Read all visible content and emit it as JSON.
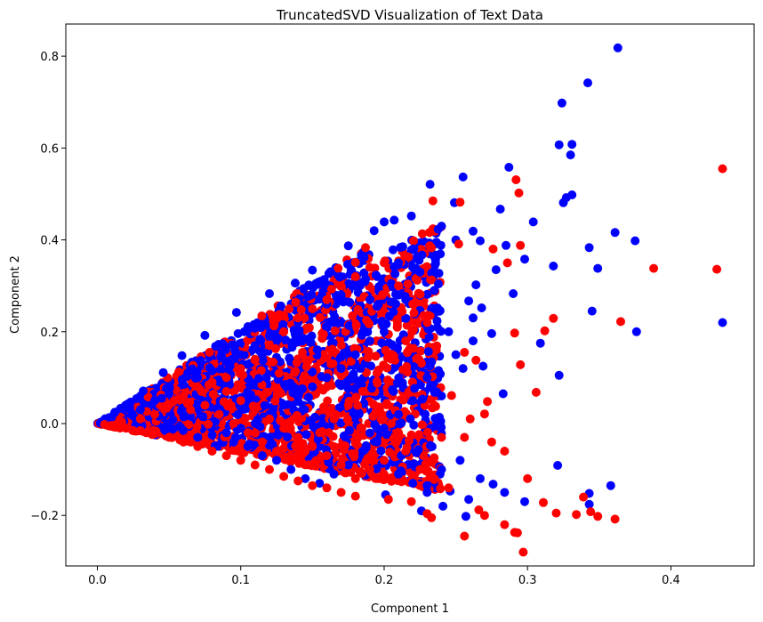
{
  "chart_data": {
    "type": "scatter",
    "title": "TruncatedSVD Visualization of Text Data",
    "xlabel": "Component 1",
    "ylabel": "Component 2",
    "xlim": [
      -0.022,
      0.458
    ],
    "ylim": [
      -0.31,
      0.87
    ],
    "xticks": [
      "0.0",
      "0.1",
      "0.2",
      "0.3",
      "0.4"
    ],
    "xtick_values": [
      0.0,
      0.1,
      0.2,
      0.3,
      0.4
    ],
    "yticks": [
      "−0.2",
      "0.0",
      "0.2",
      "0.4",
      "0.6",
      "0.8"
    ],
    "ytick_values": [
      -0.2,
      0.0,
      0.2,
      0.4,
      0.6,
      0.8
    ],
    "grid": false,
    "legend": "none",
    "colors": {
      "class_a": "#0000ff",
      "class_b": "#ff0000"
    },
    "series": [
      {
        "color": "#0000ff",
        "points": [
          [
            0.363,
            0.818
          ],
          [
            0.342,
            0.742
          ],
          [
            0.324,
            0.698
          ],
          [
            0.322,
            0.607
          ],
          [
            0.331,
            0.608
          ],
          [
            0.33,
            0.585
          ],
          [
            0.331,
            0.498
          ],
          [
            0.327,
            0.492
          ],
          [
            0.325,
            0.481
          ],
          [
            0.287,
            0.558
          ],
          [
            0.255,
            0.537
          ],
          [
            0.232,
            0.521
          ],
          [
            0.249,
            0.481
          ],
          [
            0.281,
            0.467
          ],
          [
            0.304,
            0.439
          ],
          [
            0.262,
            0.419
          ],
          [
            0.267,
            0.398
          ],
          [
            0.298,
            0.358
          ],
          [
            0.285,
            0.388
          ],
          [
            0.318,
            0.343
          ],
          [
            0.29,
            0.283
          ],
          [
            0.278,
            0.335
          ],
          [
            0.264,
            0.302
          ],
          [
            0.268,
            0.252
          ],
          [
            0.262,
            0.23
          ],
          [
            0.259,
            0.267
          ],
          [
            0.275,
            0.196
          ],
          [
            0.262,
            0.18
          ],
          [
            0.269,
            0.125
          ],
          [
            0.283,
            0.065
          ],
          [
            0.322,
            0.105
          ],
          [
            0.309,
            0.175
          ],
          [
            0.343,
            0.383
          ],
          [
            0.349,
            0.338
          ],
          [
            0.361,
            0.416
          ],
          [
            0.375,
            0.398
          ],
          [
            0.345,
            0.245
          ],
          [
            0.376,
            0.2
          ],
          [
            0.436,
            0.22
          ],
          [
            0.358,
            -0.135
          ],
          [
            0.343,
            -0.152
          ],
          [
            0.343,
            -0.176
          ],
          [
            0.321,
            -0.091
          ],
          [
            0.298,
            -0.17
          ],
          [
            0.284,
            -0.15
          ],
          [
            0.276,
            -0.132
          ],
          [
            0.267,
            -0.12
          ],
          [
            0.257,
            -0.202
          ],
          [
            0.259,
            -0.165
          ],
          [
            0.241,
            -0.18
          ],
          [
            0.246,
            -0.147
          ],
          [
            0.226,
            -0.19
          ],
          [
            0.201,
            -0.155
          ],
          [
            0.253,
            -0.08
          ],
          [
            0.239,
            -0.11
          ],
          [
            0.219,
            0.452
          ],
          [
            0.207,
            0.443
          ],
          [
            0.2,
            0.439
          ],
          [
            0.193,
            0.42
          ],
          [
            0.175,
            0.387
          ],
          [
            0.186,
            0.362
          ],
          [
            0.15,
            0.334
          ],
          [
            0.138,
            0.306
          ],
          [
            0.12,
            0.283
          ],
          [
            0.097,
            0.242
          ],
          [
            0.075,
            0.192
          ],
          [
            0.059,
            0.148
          ],
          [
            0.046,
            0.111
          ],
          [
            0.032,
            0.071
          ],
          [
            0.021,
            0.04
          ],
          [
            0.01,
            0.014
          ],
          [
            0.005,
            0.003
          ],
          [
            0.002,
            0.001
          ],
          [
            0.22,
            0.38
          ],
          [
            0.21,
            0.35
          ],
          [
            0.225,
            0.33
          ],
          [
            0.205,
            0.305
          ],
          [
            0.235,
            0.29
          ],
          [
            0.215,
            0.27
          ],
          [
            0.195,
            0.255
          ],
          [
            0.18,
            0.3
          ],
          [
            0.17,
            0.28
          ],
          [
            0.16,
            0.26
          ],
          [
            0.15,
            0.24
          ],
          [
            0.14,
            0.22
          ],
          [
            0.13,
            0.205
          ],
          [
            0.12,
            0.19
          ],
          [
            0.11,
            0.17
          ],
          [
            0.1,
            0.15
          ],
          [
            0.09,
            0.135
          ],
          [
            0.08,
            0.115
          ],
          [
            0.07,
            0.1
          ],
          [
            0.06,
            0.085
          ],
          [
            0.05,
            0.065
          ],
          [
            0.04,
            0.05
          ],
          [
            0.03,
            0.03
          ],
          [
            0.2,
            0.2
          ],
          [
            0.19,
            0.18
          ],
          [
            0.18,
            0.15
          ],
          [
            0.17,
            0.12
          ],
          [
            0.16,
            0.1
          ],
          [
            0.15,
            0.08
          ],
          [
            0.14,
            0.06
          ],
          [
            0.13,
            0.04
          ],
          [
            0.12,
            0.02
          ],
          [
            0.11,
            0.0
          ],
          [
            0.1,
            -0.01
          ],
          [
            0.09,
            -0.02
          ],
          [
            0.08,
            -0.025
          ],
          [
            0.07,
            -0.03
          ],
          [
            0.06,
            -0.015
          ],
          [
            0.05,
            0.0
          ],
          [
            0.23,
            0.1
          ],
          [
            0.24,
            0.06
          ],
          [
            0.22,
            0.05
          ],
          [
            0.21,
            0.02
          ],
          [
            0.2,
            -0.01
          ],
          [
            0.195,
            -0.04
          ],
          [
            0.185,
            -0.06
          ],
          [
            0.175,
            -0.09
          ],
          [
            0.165,
            -0.11
          ],
          [
            0.155,
            -0.13
          ],
          [
            0.145,
            -0.12
          ],
          [
            0.135,
            -0.1
          ],
          [
            0.125,
            -0.08
          ],
          [
            0.115,
            -0.07
          ],
          [
            0.105,
            -0.05
          ],
          [
            0.095,
            -0.04
          ],
          [
            0.21,
            -0.11
          ],
          [
            0.22,
            -0.13
          ],
          [
            0.23,
            -0.15
          ],
          [
            0.24,
            -0.1
          ],
          [
            0.25,
            0.15
          ],
          [
            0.255,
            0.12
          ],
          [
            0.245,
            0.2
          ],
          [
            0.235,
            0.25
          ],
          [
            0.25,
            0.4
          ],
          [
            0.24,
            0.43
          ]
        ]
      },
      {
        "color": "#ff0000",
        "points": [
          [
            0.436,
            0.555
          ],
          [
            0.388,
            0.338
          ],
          [
            0.432,
            0.336
          ],
          [
            0.365,
            0.222
          ],
          [
            0.292,
            0.531
          ],
          [
            0.294,
            0.502
          ],
          [
            0.253,
            0.482
          ],
          [
            0.234,
            0.485
          ],
          [
            0.252,
            0.391
          ],
          [
            0.276,
            0.38
          ],
          [
            0.295,
            0.388
          ],
          [
            0.286,
            0.35
          ],
          [
            0.312,
            0.202
          ],
          [
            0.318,
            0.229
          ],
          [
            0.291,
            0.197
          ],
          [
            0.295,
            0.128
          ],
          [
            0.306,
            0.068
          ],
          [
            0.256,
            0.155
          ],
          [
            0.264,
            0.138
          ],
          [
            0.272,
            0.048
          ],
          [
            0.27,
            0.021
          ],
          [
            0.256,
            -0.03
          ],
          [
            0.275,
            -0.04
          ],
          [
            0.284,
            -0.06
          ],
          [
            0.247,
            0.061
          ],
          [
            0.26,
            0.01
          ],
          [
            0.24,
            -0.03
          ],
          [
            0.3,
            -0.12
          ],
          [
            0.311,
            -0.172
          ],
          [
            0.32,
            -0.195
          ],
          [
            0.334,
            -0.198
          ],
          [
            0.339,
            -0.16
          ],
          [
            0.349,
            -0.202
          ],
          [
            0.361,
            -0.208
          ],
          [
            0.344,
            -0.192
          ],
          [
            0.297,
            -0.28
          ],
          [
            0.291,
            -0.237
          ],
          [
            0.293,
            -0.238
          ],
          [
            0.256,
            -0.245
          ],
          [
            0.284,
            -0.22
          ],
          [
            0.27,
            -0.2
          ],
          [
            0.266,
            -0.188
          ],
          [
            0.23,
            -0.196
          ],
          [
            0.233,
            -0.205
          ],
          [
            0.219,
            -0.17
          ],
          [
            0.203,
            -0.165
          ],
          [
            0.18,
            -0.158
          ],
          [
            0.17,
            -0.15
          ],
          [
            0.16,
            -0.14
          ],
          [
            0.15,
            -0.135
          ],
          [
            0.14,
            -0.125
          ],
          [
            0.13,
            -0.115
          ],
          [
            0.12,
            -0.1
          ],
          [
            0.11,
            -0.09
          ],
          [
            0.1,
            -0.08
          ],
          [
            0.09,
            -0.07
          ],
          [
            0.08,
            -0.06
          ],
          [
            0.07,
            -0.05
          ],
          [
            0.06,
            -0.04
          ],
          [
            0.05,
            -0.03
          ],
          [
            0.04,
            -0.022
          ],
          [
            0.03,
            -0.015
          ],
          [
            0.02,
            -0.01
          ],
          [
            0.01,
            -0.004
          ],
          [
            0.005,
            -0.002
          ],
          [
            0.2,
            -0.08
          ],
          [
            0.19,
            -0.1
          ],
          [
            0.18,
            -0.12
          ],
          [
            0.17,
            -0.09
          ],
          [
            0.16,
            -0.07
          ],
          [
            0.15,
            -0.05
          ],
          [
            0.14,
            -0.03
          ],
          [
            0.13,
            -0.01
          ],
          [
            0.12,
            0.01
          ],
          [
            0.11,
            0.03
          ],
          [
            0.1,
            0.05
          ],
          [
            0.09,
            0.07
          ],
          [
            0.08,
            0.09
          ],
          [
            0.07,
            0.08
          ],
          [
            0.06,
            0.06
          ],
          [
            0.05,
            0.04
          ],
          [
            0.04,
            0.02
          ],
          [
            0.03,
            0.01
          ],
          [
            0.19,
            0.34
          ],
          [
            0.2,
            0.35
          ],
          [
            0.18,
            0.32
          ],
          [
            0.17,
            0.3
          ],
          [
            0.16,
            0.27
          ],
          [
            0.15,
            0.25
          ],
          [
            0.14,
            0.23
          ],
          [
            0.13,
            0.2
          ],
          [
            0.12,
            0.17
          ],
          [
            0.11,
            0.14
          ],
          [
            0.1,
            0.12
          ],
          [
            0.09,
            0.1
          ],
          [
            0.21,
            0.3
          ],
          [
            0.22,
            0.26
          ],
          [
            0.23,
            0.22
          ],
          [
            0.215,
            0.18
          ],
          [
            0.205,
            0.14
          ],
          [
            0.195,
            0.11
          ],
          [
            0.185,
            0.07
          ],
          [
            0.175,
            0.04
          ],
          [
            0.165,
            0.01
          ],
          [
            0.155,
            -0.02
          ],
          [
            0.145,
            -0.06
          ],
          [
            0.135,
            -0.08
          ],
          [
            0.125,
            -0.06
          ],
          [
            0.115,
            -0.04
          ],
          [
            0.105,
            -0.02
          ],
          [
            0.095,
            0.0
          ],
          [
            0.085,
            0.02
          ],
          [
            0.075,
            0.04
          ],
          [
            0.065,
            0.03
          ],
          [
            0.225,
            -0.1
          ],
          [
            0.235,
            -0.12
          ],
          [
            0.245,
            -0.14
          ],
          [
            0.215,
            -0.06
          ],
          [
            0.21,
            -0.03
          ],
          [
            0.205,
            0.0
          ]
        ]
      }
    ]
  }
}
